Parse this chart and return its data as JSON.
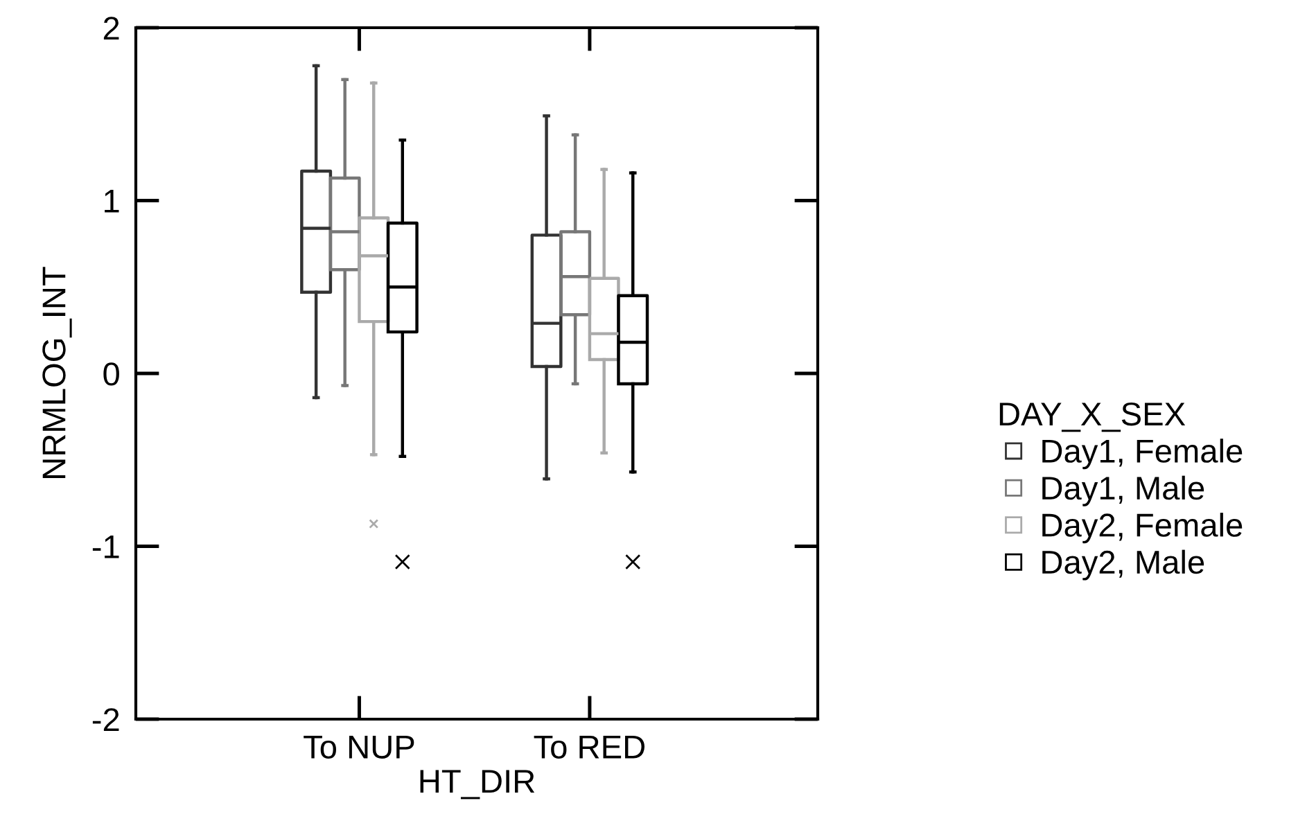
{
  "chart_data": {
    "type": "box",
    "xlabel": "HT_DIR",
    "ylabel": "NRMLOG_INT",
    "legend_title": "DAY_X_SEX",
    "legend": "right",
    "grid": false,
    "marker": "cross",
    "categories": [
      "To NUP",
      "To RED"
    ],
    "ylim": [
      -2,
      2
    ],
    "yticks": [
      -2,
      -1,
      0,
      1,
      2
    ],
    "series": [
      {
        "name": "Day1, Female",
        "color": "#333333",
        "boxes": [
          {
            "low": -0.14,
            "q1": 0.47,
            "median": 0.84,
            "q3": 1.17,
            "high": 1.78
          },
          {
            "low": -0.61,
            "q1": 0.04,
            "median": 0.29,
            "q3": 0.8,
            "high": 1.49
          }
        ]
      },
      {
        "name": "Day1, Male",
        "color": "#777777",
        "boxes": [
          {
            "low": -0.07,
            "q1": 0.6,
            "median": 0.82,
            "q3": 1.13,
            "high": 1.7
          },
          {
            "low": -0.06,
            "q1": 0.34,
            "median": 0.56,
            "q3": 0.82,
            "high": 1.38
          }
        ]
      },
      {
        "name": "Day2, Female",
        "color": "#aaaaaa",
        "boxes": [
          {
            "low": -0.47,
            "q1": 0.3,
            "median": 0.68,
            "q3": 0.9,
            "high": 1.68,
            "outliers": [
              -0.87
            ]
          },
          {
            "low": -0.46,
            "q1": 0.08,
            "median": 0.23,
            "q3": 0.55,
            "high": 1.18
          }
        ]
      },
      {
        "name": "Day2, Male",
        "color": "#000000",
        "boxes": [
          {
            "low": -0.48,
            "q1": 0.24,
            "median": 0.5,
            "q3": 0.87,
            "high": 1.35,
            "outliers": [
              -1.09
            ]
          },
          {
            "low": -0.57,
            "q1": -0.06,
            "median": 0.18,
            "q3": 0.45,
            "high": 1.16,
            "outliers": [
              -1.09
            ]
          }
        ]
      }
    ]
  }
}
